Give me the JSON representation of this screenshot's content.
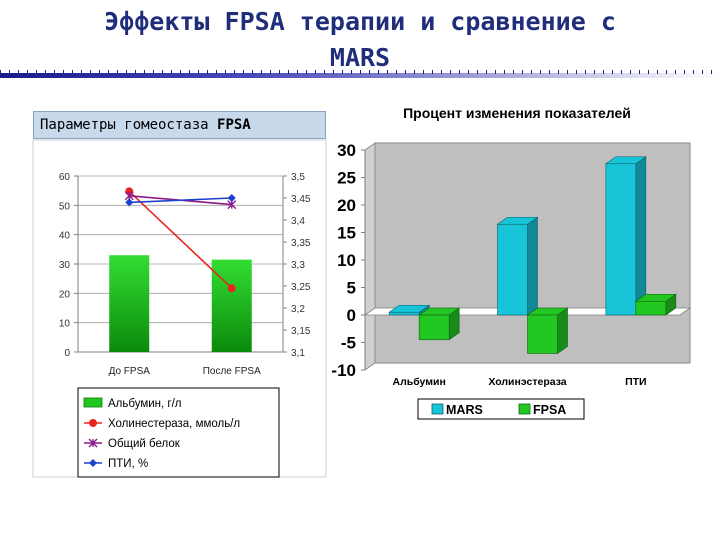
{
  "slide": {
    "title_line1": "Эффекты FPSA терапии и сравнение с",
    "title_line2": "MARS",
    "subtitle_text": "Параметры гомеостаза ",
    "subtitle_bold": "FPSA"
  },
  "chart_data": [
    {
      "type": "bar",
      "title": "",
      "categories": [
        "До FPSA",
        "После FPSA"
      ],
      "y_left": {
        "ticks": [
          "0",
          "10",
          "20",
          "30",
          "40",
          "50",
          "60"
        ],
        "range": [
          0,
          60
        ]
      },
      "y_right": {
        "ticks": [
          "3,1",
          "3,15",
          "3,2",
          "3,25",
          "3,3",
          "3,35",
          "3,4",
          "3,45",
          "3,5"
        ],
        "range": [
          3.1,
          3.5
        ]
      },
      "series": [
        {
          "name": "Альбумин, г/л",
          "kind": "bar",
          "axis": "left",
          "color": "#22c722",
          "values": [
            33,
            31.5
          ]
        },
        {
          "name": "Холинестераза, ммоль/л",
          "kind": "line",
          "axis": "right",
          "color": "#e8261e",
          "marker": "circle",
          "values": [
            3.465,
            3.245
          ]
        },
        {
          "name": "Общий белок",
          "kind": "line",
          "axis": "right",
          "color": "#8b1a8b",
          "marker": "x",
          "values": [
            3.455,
            3.435
          ]
        },
        {
          "name": "ПТИ, %",
          "kind": "line",
          "axis": "right",
          "color": "#1f3fcf",
          "marker": "diamond",
          "values": [
            3.44,
            3.45
          ]
        }
      ],
      "legend_position": "bottom"
    },
    {
      "type": "bar",
      "title": "Процент изменения показателей",
      "categories": [
        "Альбумин",
        "Холинэстераза",
        "ПТИ"
      ],
      "ylim": [
        -10,
        30
      ],
      "y_ticks": [
        "-10",
        "-5",
        "0",
        "5",
        "10",
        "15",
        "20",
        "25",
        "30"
      ],
      "series": [
        {
          "name": "MARS",
          "color": "#18c4d8",
          "values": [
            0.5,
            16.5,
            27.5
          ]
        },
        {
          "name": "FPSA",
          "color": "#22c722",
          "values": [
            -4.5,
            -7,
            2.5
          ]
        }
      ],
      "grid": false,
      "legend_position": "bottom"
    }
  ]
}
